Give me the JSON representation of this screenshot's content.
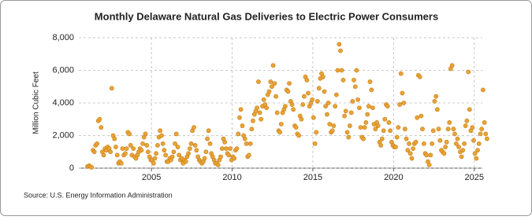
{
  "chart_data": {
    "type": "scatter",
    "title": "Monthly Delaware Natural Gas Deliveries to Electric Power Consumers",
    "y_label": "Million Cubic Feet",
    "source": "Source: U.S. Energy Information Administration",
    "color": "#e8a33a",
    "grid": true,
    "xlim": [
      2000.5,
      2025.5
    ],
    "ylim": [
      0,
      8000
    ],
    "xticks": [
      2005,
      2010,
      2015,
      2020,
      2025
    ],
    "yticks": [
      0,
      {
        "value": 2000,
        "label": "2,000"
      },
      {
        "value": 4000,
        "label": "4,000"
      },
      {
        "value": 6000,
        "label": "6,000"
      },
      {
        "value": 8000,
        "label": "8,000"
      }
    ],
    "x": [
      2001.04,
      2001.13,
      2001.21,
      2001.29,
      2001.38,
      2001.46,
      2001.54,
      2001.63,
      2001.71,
      2001.79,
      2001.88,
      2001.96,
      2002.04,
      2002.13,
      2002.21,
      2002.29,
      2002.38,
      2002.46,
      2002.54,
      2002.63,
      2002.71,
      2002.79,
      2002.88,
      2002.96,
      2003.04,
      2003.13,
      2003.21,
      2003.29,
      2003.38,
      2003.46,
      2003.54,
      2003.63,
      2003.71,
      2003.79,
      2003.88,
      2003.96,
      2004.04,
      2004.13,
      2004.21,
      2004.29,
      2004.38,
      2004.46,
      2004.54,
      2004.63,
      2004.71,
      2004.79,
      2004.88,
      2004.96,
      2005.04,
      2005.13,
      2005.21,
      2005.29,
      2005.38,
      2005.46,
      2005.54,
      2005.63,
      2005.71,
      2005.79,
      2005.88,
      2005.96,
      2006.04,
      2006.13,
      2006.21,
      2006.29,
      2006.38,
      2006.46,
      2006.54,
      2006.63,
      2006.71,
      2006.79,
      2006.88,
      2006.96,
      2007.04,
      2007.13,
      2007.21,
      2007.29,
      2007.38,
      2007.46,
      2007.54,
      2007.63,
      2007.71,
      2007.79,
      2007.88,
      2007.96,
      2008.04,
      2008.13,
      2008.21,
      2008.29,
      2008.38,
      2008.46,
      2008.54,
      2008.63,
      2008.71,
      2008.79,
      2008.88,
      2008.96,
      2009.04,
      2009.13,
      2009.21,
      2009.29,
      2009.38,
      2009.46,
      2009.54,
      2009.63,
      2009.71,
      2009.79,
      2009.88,
      2009.96,
      2010.04,
      2010.13,
      2010.21,
      2010.29,
      2010.38,
      2010.46,
      2010.54,
      2010.63,
      2010.71,
      2010.79,
      2010.88,
      2010.96,
      2011.04,
      2011.13,
      2011.21,
      2011.29,
      2011.38,
      2011.46,
      2011.54,
      2011.63,
      2011.71,
      2011.79,
      2011.88,
      2011.96,
      2012.04,
      2012.13,
      2012.21,
      2012.29,
      2012.38,
      2012.46,
      2012.54,
      2012.63,
      2012.71,
      2012.79,
      2012.88,
      2012.96,
      2013.04,
      2013.13,
      2013.21,
      2013.29,
      2013.38,
      2013.46,
      2013.54,
      2013.63,
      2013.71,
      2013.79,
      2013.88,
      2013.96,
      2014.04,
      2014.13,
      2014.21,
      2014.29,
      2014.38,
      2014.46,
      2014.54,
      2014.63,
      2014.71,
      2014.79,
      2014.88,
      2014.96,
      2015.04,
      2015.13,
      2015.21,
      2015.29,
      2015.38,
      2015.46,
      2015.54,
      2015.63,
      2015.71,
      2015.79,
      2015.88,
      2015.96,
      2016.04,
      2016.13,
      2016.21,
      2016.29,
      2016.38,
      2016.46,
      2016.54,
      2016.63,
      2016.71,
      2016.79,
      2016.88,
      2016.96,
      2017.04,
      2017.13,
      2017.21,
      2017.29,
      2017.38,
      2017.46,
      2017.54,
      2017.63,
      2017.71,
      2017.79,
      2017.88,
      2017.96,
      2018.04,
      2018.13,
      2018.21,
      2018.29,
      2018.38,
      2018.46,
      2018.54,
      2018.63,
      2018.71,
      2018.79,
      2018.88,
      2018.96,
      2019.04,
      2019.13,
      2019.21,
      2019.29,
      2019.38,
      2019.46,
      2019.54,
      2019.63,
      2019.71,
      2019.79,
      2019.88,
      2019.96,
      2020.04,
      2020.13,
      2020.21,
      2020.29,
      2020.38,
      2020.46,
      2020.54,
      2020.63,
      2020.71,
      2020.79,
      2020.88,
      2020.96,
      2021.04,
      2021.13,
      2021.21,
      2021.29,
      2021.38,
      2021.46,
      2021.54,
      2021.63,
      2021.71,
      2021.79,
      2021.88,
      2021.96,
      2022.04,
      2022.13,
      2022.21,
      2022.29,
      2022.38,
      2022.46,
      2022.54,
      2022.63,
      2022.71,
      2022.79,
      2022.88,
      2022.96,
      2023.04,
      2023.13,
      2023.21,
      2023.29,
      2023.38,
      2023.46,
      2023.54,
      2023.63,
      2023.71,
      2023.79,
      2023.88,
      2023.96,
      2024.04,
      2024.13,
      2024.21,
      2024.29,
      2024.38,
      2024.46,
      2024.54,
      2024.63,
      2024.71,
      2024.79,
      2024.88,
      2024.96,
      2025.04,
      2025.13,
      2025.21,
      2025.29,
      2025.38,
      2025.46,
      2025.54,
      2025.63,
      2025.71,
      2025.79
    ],
    "values": [
      100,
      150,
      100,
      50,
      1100,
      1000,
      1400,
      1500,
      2900,
      3000,
      2500,
      1000,
      800,
      1200,
      1100,
      1300,
      1200,
      1000,
      4900,
      2000,
      1800,
      1300,
      800,
      300,
      400,
      300,
      1200,
      800,
      900,
      1200,
      2200,
      2100,
      1400,
      800,
      1200,
      700,
      600,
      800,
      1000,
      1200,
      1100,
      1500,
      1900,
      2100,
      1400,
      1000,
      700,
      500,
      500,
      300,
      600,
      900,
      1400,
      1900,
      2300,
      2000,
      1500,
      1100,
      800,
      400,
      400,
      600,
      500,
      700,
      1000,
      1500,
      2100,
      1300,
      800,
      500,
      600,
      300,
      500,
      400,
      700,
      900,
      1200,
      1500,
      2300,
      2500,
      1400,
      1100,
      700,
      500,
      400,
      300,
      400,
      600,
      1000,
      1800,
      2300,
      1500,
      900,
      700,
      500,
      300,
      300,
      200,
      500,
      700,
      1200,
      1800,
      1600,
      1200,
      900,
      800,
      1200,
      500,
      700,
      600,
      1100,
      1200,
      2100,
      3100,
      3600,
      2600,
      2000,
      1800,
      1500,
      700,
      800,
      1500,
      2400,
      2900,
      3300,
      3500,
      3700,
      5300,
      3400,
      3000,
      3800,
      4200,
      3900,
      3700,
      4500,
      4700,
      5300,
      5000,
      6300,
      5200,
      4400,
      3400,
      2300,
      2200,
      2700,
      3400,
      3600,
      3800,
      4800,
      4700,
      5200,
      4100,
      3900,
      3600,
      2600,
      2500,
      2100,
      2000,
      3200,
      3000,
      3900,
      4400,
      5600,
      5400,
      4600,
      3800,
      4000,
      4200,
      3100,
      1500,
      2200,
      4100,
      4900,
      5500,
      5800,
      5600,
      4700,
      3800,
      3300,
      4000,
      2700,
      2200,
      2300,
      2600,
      3800,
      4500,
      6000,
      7600,
      7200,
      6000,
      5400,
      3200,
      3500,
      2200,
      1900,
      2600,
      3400,
      4100,
      5400,
      5000,
      6000,
      4200,
      3700,
      2500,
      1900,
      1800,
      2500,
      2800,
      3300,
      3800,
      5300,
      4800,
      3700,
      2700,
      2400,
      2800,
      2600,
      1600,
      1400,
      1800,
      2300,
      3000,
      3900,
      3800,
      2800,
      2300,
      1600,
      1400,
      1300,
      1300,
      1900,
      2500,
      3900,
      5800,
      4600,
      4000,
      2400,
      1800,
      1100,
      1500,
      900,
      600,
      1200,
      1500,
      1600,
      3100,
      5700,
      5600,
      3200,
      2400,
      1500,
      900,
      800,
      400,
      200,
      800,
      1500,
      2300,
      4100,
      4400,
      3600,
      2400,
      1700,
      1100,
      1000,
      900,
      1300,
      1600,
      2400,
      2800,
      6100,
      6300,
      2400,
      2100,
      1500,
      1800,
      1300,
      1000,
      700,
      1100,
      1500,
      2600,
      2900,
      5900,
      3600,
      2300,
      2500,
      1700,
      900,
      600,
      1100,
      1500,
      2100,
      2400,
      4800,
      2800,
      2100,
      1800
    ]
  }
}
